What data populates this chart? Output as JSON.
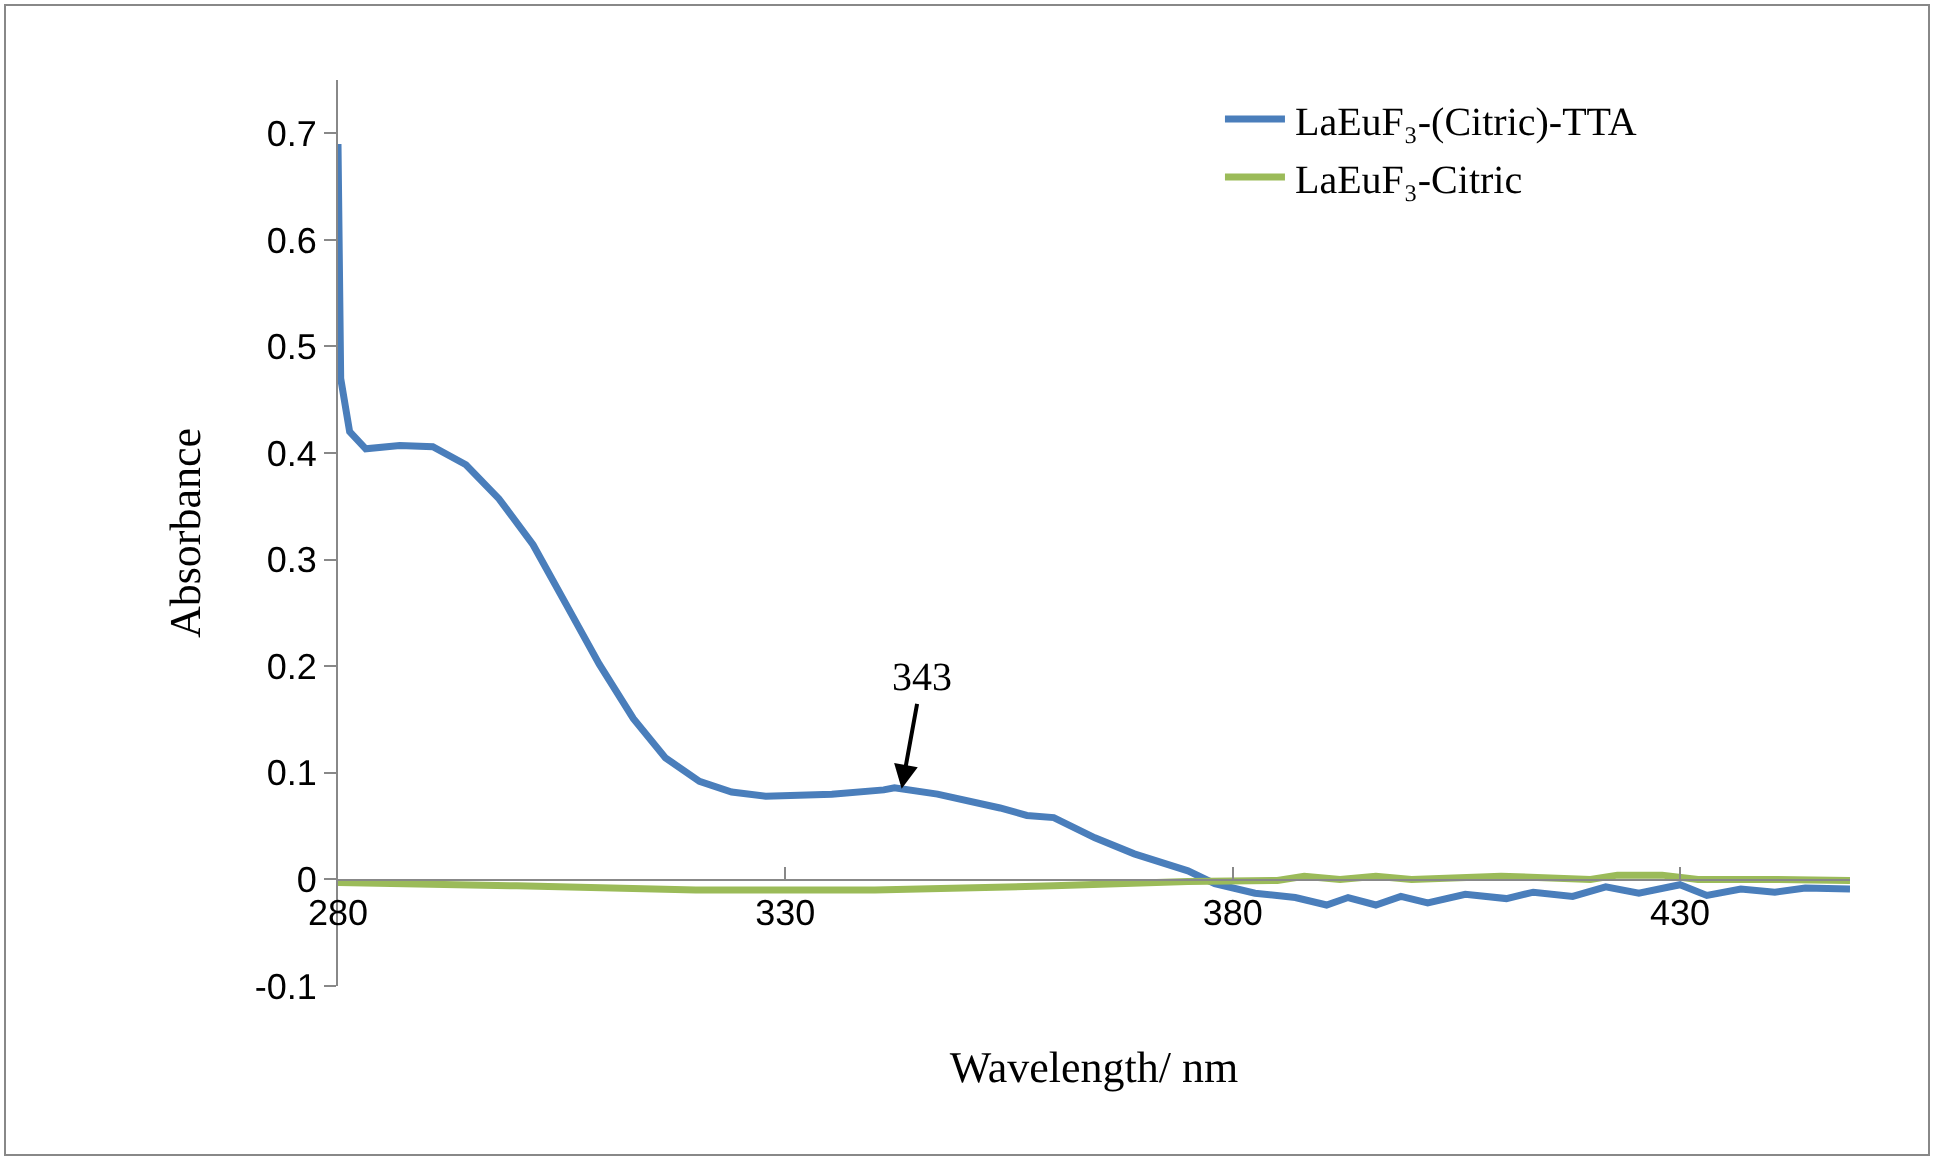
{
  "chart_data": {
    "type": "line",
    "xlabel": "Wavelength/ nm",
    "ylabel": "Absorbance",
    "xlim": [
      280,
      449
    ],
    "xticks": [
      280,
      330,
      380,
      430
    ],
    "ylim": [
      -0.1,
      0.75
    ],
    "yticks": [
      -0.1,
      0,
      0.1,
      0.2,
      0.3,
      0.4,
      0.5,
      0.6,
      0.7
    ],
    "grid": false,
    "legend": "top right",
    "marker": "none",
    "line_style": "solid",
    "annotations": [
      {
        "text": "343",
        "x": 343,
        "y": 0.085
      }
    ],
    "series": [
      {
        "name": "LaEuF₃-(Citric)-TTA",
        "color": "#4a7ebb",
        "x": [
          280,
          280.3,
          281.3,
          283.1,
          286.9,
          290.6,
          294.3,
          298,
          301.8,
          305.5,
          309.2,
          313,
          316.6,
          320.4,
          324,
          327.8,
          335.2,
          341,
          342.2,
          347,
          354,
          357,
          360,
          364.6,
          369,
          375,
          378,
          382.5,
          387,
          390.5,
          392.9,
          396,
          398.8,
          401.8,
          406,
          410.6,
          413.6,
          418,
          421.7,
          425.4,
          430,
          433,
          436.8,
          440.6,
          444,
          449
        ],
        "values": [
          0.69,
          0.47,
          0.42,
          0.404,
          0.407,
          0.406,
          0.389,
          0.357,
          0.314,
          0.258,
          0.202,
          0.151,
          0.114,
          0.092,
          0.082,
          0.078,
          0.08,
          0.084,
          0.086,
          0.08,
          0.067,
          0.06,
          0.058,
          0.039,
          0.024,
          0.008,
          -0.004,
          -0.013,
          -0.017,
          -0.024,
          -0.017,
          -0.024,
          -0.016,
          -0.022,
          -0.014,
          -0.018,
          -0.012,
          -0.016,
          -0.007,
          -0.013,
          -0.005,
          -0.015,
          -0.009,
          -0.012,
          -0.008,
          -0.009
        ]
      },
      {
        "name": "LaEuF₃-Citric",
        "color": "#9bbb59",
        "x": [
          280,
          300,
          320,
          340,
          360,
          375,
          385,
          388,
          392,
          396,
          400,
          410,
          420,
          423,
          428,
          432,
          440,
          449
        ],
        "values": [
          -0.003,
          -0.006,
          -0.01,
          -0.01,
          -0.006,
          -0.002,
          -0.001,
          0.003,
          0,
          0.003,
          0,
          0.003,
          0,
          0.004,
          0.004,
          0,
          0,
          -0.001
        ]
      }
    ]
  }
}
